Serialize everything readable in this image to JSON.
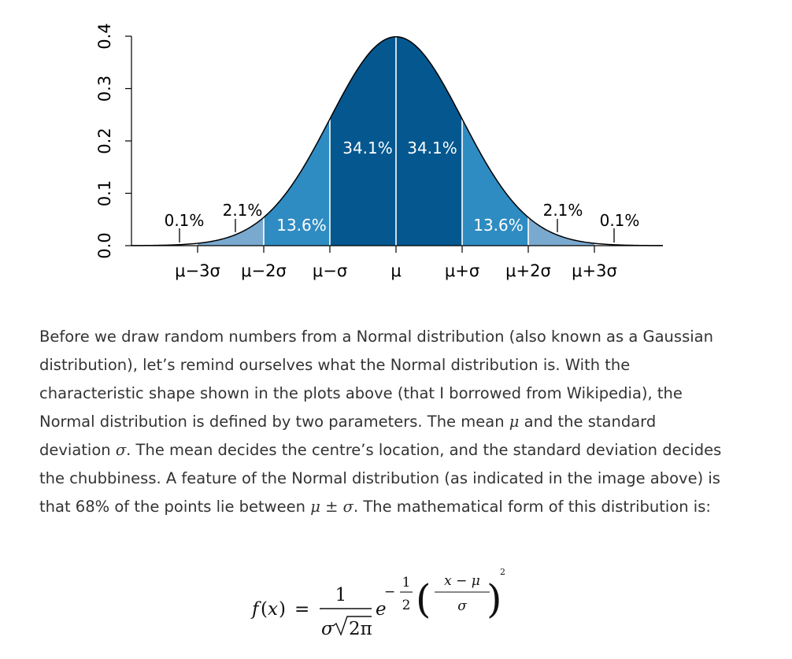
{
  "chart_data": {
    "type": "area",
    "title": "",
    "xlabel": "",
    "ylabel": "",
    "ylim": [
      0.0,
      0.4
    ],
    "xlim": [
      -3.0,
      3.0
    ],
    "y_ticks": [
      "0.0",
      "0.1",
      "0.2",
      "0.3",
      "0.4"
    ],
    "x_ticks": [
      {
        "label": "μ−3σ",
        "value": -3
      },
      {
        "label": "μ−2σ",
        "value": -2
      },
      {
        "label": "μ−σ",
        "value": -1
      },
      {
        "label": "μ",
        "value": 0
      },
      {
        "label": "μ+σ",
        "value": 1
      },
      {
        "label": "μ+2σ",
        "value": 2
      },
      {
        "label": "μ+3σ",
        "value": 3
      }
    ],
    "curve": "standard normal density",
    "bands": [
      {
        "from": -3,
        "to": -2,
        "percent": "2.1%",
        "color": "#7aa9d0"
      },
      {
        "from": -2,
        "to": -1,
        "percent": "13.6%",
        "color": "#2f8cc2"
      },
      {
        "from": -1,
        "to": 0,
        "percent": "34.1%",
        "color": "#05578f"
      },
      {
        "from": 0,
        "to": 1,
        "percent": "34.1%",
        "color": "#05578f"
      },
      {
        "from": 1,
        "to": 2,
        "percent": "13.6%",
        "color": "#2f8cc2"
      },
      {
        "from": 2,
        "to": 3,
        "percent": "2.1%",
        "color": "#7aa9d0"
      }
    ],
    "tails": [
      {
        "side": "left",
        "percent": "0.1%"
      },
      {
        "side": "right",
        "percent": "0.1%"
      }
    ],
    "grid": false
  },
  "article": {
    "paragraph": [
      {
        "t": "text",
        "v": "Before we draw random numbers from a Normal distribution (also known as a Gaussian distribution), let’s remind ourselves what the Normal distribution is. With the characteristic shape shown in the plots above (that I borrowed from Wikipedia), the Normal distribution is defined by two parameters. The mean "
      },
      {
        "t": "math",
        "v": "μ"
      },
      {
        "t": "text",
        "v": " and the standard deviation "
      },
      {
        "t": "math",
        "v": "σ"
      },
      {
        "t": "text",
        "v": ". The mean decides the centre’s location, and the standard deviation decides the chubbiness. A feature of the Normal distribution (as indicated in the image above) is that 68% of the points lie between "
      },
      {
        "t": "math",
        "v": "μ"
      },
      {
        "t": "op",
        "v": " ± "
      },
      {
        "t": "math",
        "v": "σ"
      },
      {
        "t": "text",
        "v": ". The mathematical form of this distribution is:"
      }
    ]
  },
  "formula": {
    "lhs_fn": "f",
    "lhs_open": "(",
    "lhs_var": "x",
    "lhs_close": ")",
    "equals": "=",
    "numerator": "1",
    "denominator_sigma": "σ",
    "sqrt_content": "2π",
    "base": "e",
    "exp_minus": "−",
    "exp_half_num": "1",
    "exp_half_den": "2",
    "paren_open": "(",
    "paren_close": ")",
    "frac_num": "x − μ",
    "frac_den": "σ",
    "power": "2"
  }
}
